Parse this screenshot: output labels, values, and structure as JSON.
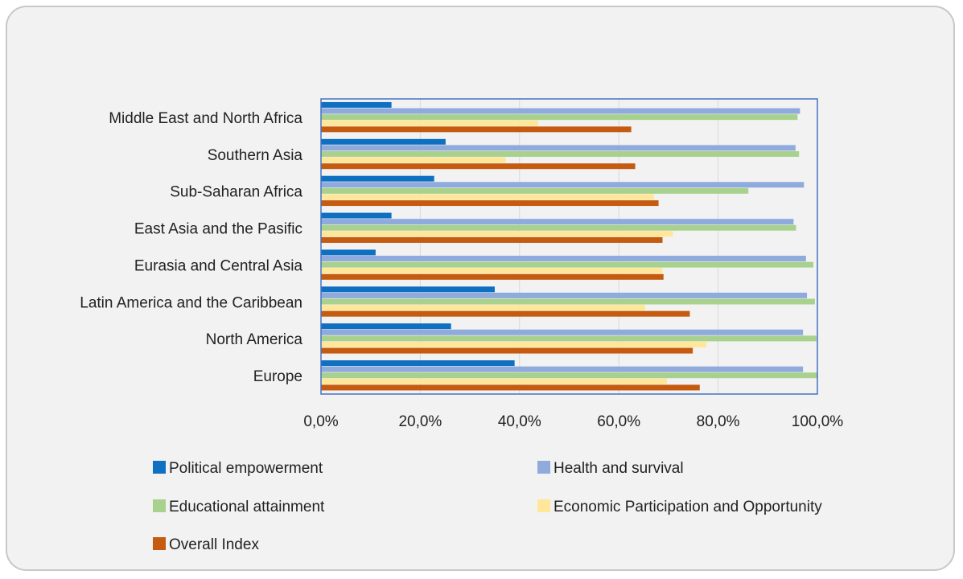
{
  "chart_data": {
    "type": "bar",
    "orientation": "horizontal",
    "title": "",
    "xlabel": "",
    "ylabel": "",
    "xlim": [
      0,
      100
    ],
    "x_ticks": [
      "0,0%",
      "20,0%",
      "40,0%",
      "60,0%",
      "80,0%",
      "100,0%"
    ],
    "grid": true,
    "legend_position": "bottom",
    "categories": [
      "Middle East and North Africa",
      "Southern Asia",
      "Sub-Saharan Africa",
      "East Asia and the Pasific",
      "Eurasia and Central Asia",
      "Latin America and the Caribbean",
      "North America",
      "Europe"
    ],
    "series": [
      {
        "name": "Political empowerment",
        "color": "#0f70c1",
        "values": [
          14.2,
          25.1,
          22.8,
          14.2,
          11.0,
          35.0,
          26.2,
          39.0
        ]
      },
      {
        "name": "Health and survival",
        "color": "#8faadc",
        "values": [
          96.5,
          95.6,
          97.3,
          95.2,
          97.7,
          97.9,
          97.1,
          97.1
        ]
      },
      {
        "name": "Educational attainment",
        "color": "#a9d18e",
        "values": [
          96.0,
          96.3,
          86.1,
          95.7,
          99.2,
          99.5,
          99.8,
          100.0
        ]
      },
      {
        "name": "Economic Participation and Opportunity",
        "color": "#ffe699",
        "values": [
          43.8,
          37.2,
          67.1,
          70.9,
          68.8,
          65.3,
          77.6,
          69.7
        ]
      },
      {
        "name": "Overall Index",
        "color": "#c55a11",
        "values": [
          62.5,
          63.3,
          68.0,
          68.8,
          69.0,
          74.3,
          74.9,
          76.3
        ]
      }
    ]
  }
}
